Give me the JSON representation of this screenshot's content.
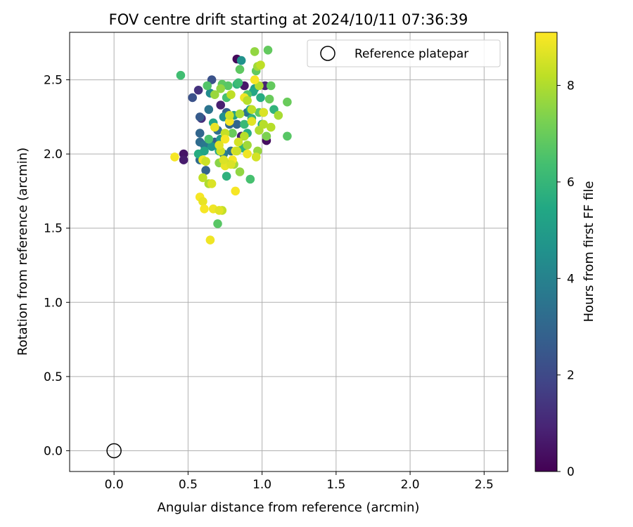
{
  "chart_data": {
    "type": "scatter",
    "title": "FOV centre drift starting at 2024/10/11 07:36:39",
    "xlabel": "Angular distance from reference (arcmin)",
    "ylabel": "Rotation from reference (arcmin)",
    "xlim": [
      -0.3,
      2.66
    ],
    "ylim": [
      -0.14,
      2.82
    ],
    "xticks": [
      0.0,
      0.5,
      1.0,
      1.5,
      2.0,
      2.5
    ],
    "yticks": [
      0.0,
      0.5,
      1.0,
      1.5,
      2.0,
      2.5
    ],
    "xtick_labels": [
      "0.0",
      "0.5",
      "1.0",
      "1.5",
      "2.0",
      "2.5"
    ],
    "ytick_labels": [
      "0.0",
      "0.5",
      "1.0",
      "1.5",
      "2.0",
      "2.5"
    ],
    "grid": true,
    "colorbar": {
      "label": "Hours from first FF file",
      "colormap": "viridis",
      "range": [
        0,
        9.1
      ],
      "ticks": [
        0,
        2,
        4,
        6,
        8
      ],
      "tick_labels": [
        "0",
        "2",
        "4",
        "6",
        "8"
      ]
    },
    "legend": {
      "placement": "top-right",
      "entries": [
        {
          "label": "Reference platepar",
          "marker": "open-circle"
        }
      ]
    },
    "reference_point": {
      "name": "Reference platepar",
      "x": 0.0,
      "y": 0.0
    },
    "series": [
      {
        "points": [
          [
            0.83,
            2.64,
            0.2
          ],
          [
            0.47,
            2.0,
            0.5
          ],
          [
            0.47,
            1.96,
            0.7
          ],
          [
            1.03,
            2.09,
            0.3
          ],
          [
            0.88,
            2.46,
            0.6
          ],
          [
            0.72,
            2.33,
            0.8
          ],
          [
            0.57,
            2.43,
            1.3
          ],
          [
            0.59,
            2.24,
            1.2
          ],
          [
            1.02,
            2.46,
            0.9
          ],
          [
            0.86,
            2.12,
            0.8
          ],
          [
            0.66,
            2.5,
            2.3
          ],
          [
            0.53,
            2.38,
            2.3
          ],
          [
            0.58,
            2.25,
            2.6
          ],
          [
            0.62,
            1.89,
            2.9
          ],
          [
            0.58,
            2.14,
            3.0
          ],
          [
            0.58,
            2.08,
            3.2
          ],
          [
            0.64,
            2.3,
            3.5
          ],
          [
            0.78,
            2.2,
            3.1
          ],
          [
            0.7,
            2.16,
            3.3
          ],
          [
            0.68,
            2.08,
            2.8
          ],
          [
            0.58,
            1.96,
            3.2
          ],
          [
            0.76,
            2.28,
            2.9
          ],
          [
            0.79,
            2.02,
            3.4
          ],
          [
            0.83,
            2.2,
            3.0
          ],
          [
            0.9,
            2.28,
            3.4
          ],
          [
            0.61,
            2.06,
            3.6
          ],
          [
            0.74,
            2.0,
            3.8
          ],
          [
            0.86,
            2.63,
            4.6
          ],
          [
            0.65,
            2.41,
            4.4
          ],
          [
            0.74,
            2.25,
            4.5
          ],
          [
            0.66,
            2.05,
            4.7
          ],
          [
            0.72,
            2.1,
            4.9
          ],
          [
            0.81,
            2.26,
            5.1
          ],
          [
            0.95,
            2.44,
            5.0
          ],
          [
            0.92,
            2.3,
            5.2
          ],
          [
            0.75,
            1.94,
            5.0
          ],
          [
            0.57,
            2.0,
            5.6
          ],
          [
            0.61,
            2.02,
            5.3
          ],
          [
            0.71,
            2.02,
            5.5
          ],
          [
            0.99,
            2.38,
            5.6
          ],
          [
            0.83,
            2.47,
            5.8
          ],
          [
            1.08,
            2.3,
            5.9
          ],
          [
            0.87,
            2.04,
            5.9
          ],
          [
            0.94,
            2.42,
            5.4
          ],
          [
            0.9,
            2.14,
            5.7
          ],
          [
            0.67,
            2.21,
            5.3
          ],
          [
            0.93,
            2.24,
            5.8
          ],
          [
            0.76,
            1.85,
            5.8
          ],
          [
            1.0,
            2.2,
            5.5
          ],
          [
            0.88,
            2.2,
            6.1
          ],
          [
            0.45,
            2.53,
            6.3
          ],
          [
            0.63,
            2.46,
            6.6
          ],
          [
            0.73,
            2.47,
            6.8
          ],
          [
            0.85,
            2.57,
            6.8
          ],
          [
            0.96,
            2.56,
            6.9
          ],
          [
            1.04,
            2.7,
            6.9
          ],
          [
            0.76,
            2.38,
            6.4
          ],
          [
            0.84,
            2.48,
            6.2
          ],
          [
            1.06,
            2.46,
            6.9
          ],
          [
            1.17,
            2.35,
            7.0
          ],
          [
            1.17,
            2.12,
            6.7
          ],
          [
            1.05,
            2.37,
            7.0
          ],
          [
            0.92,
            1.83,
            6.4
          ],
          [
            0.7,
            1.53,
            6.7
          ],
          [
            0.64,
            2.1,
            6.5
          ],
          [
            0.77,
            2.46,
            6.7
          ],
          [
            0.9,
            2.4,
            6.6
          ],
          [
            0.98,
            2.28,
            6.8
          ],
          [
            1.01,
            2.28,
            6.6
          ],
          [
            0.8,
            2.14,
            7.0
          ],
          [
            0.95,
            2.69,
            7.6
          ],
          [
            0.97,
            2.59,
            7.8
          ],
          [
            0.68,
            2.4,
            7.7
          ],
          [
            0.72,
            2.44,
            7.6
          ],
          [
            0.85,
            2.27,
            7.9
          ],
          [
            0.98,
            2.16,
            8.0
          ],
          [
            1.06,
            2.18,
            8.1
          ],
          [
            0.9,
            2.06,
            7.8
          ],
          [
            0.81,
            1.93,
            7.8
          ],
          [
            0.85,
            1.88,
            7.6
          ],
          [
            0.71,
            1.94,
            7.5
          ],
          [
            1.03,
            2.12,
            7.3
          ],
          [
            1.11,
            2.26,
            7.9
          ],
          [
            0.6,
            1.84,
            8.2
          ],
          [
            0.64,
            1.8,
            8.0
          ],
          [
            0.73,
            1.62,
            8.3
          ],
          [
            0.93,
            2.3,
            8.2
          ],
          [
            0.88,
            2.12,
            8.1
          ],
          [
            0.75,
            2.14,
            8.3
          ],
          [
            0.79,
            2.4,
            8.2
          ],
          [
            0.98,
            2.46,
            8.0
          ],
          [
            1.01,
            2.2,
            8.1
          ],
          [
            0.97,
            2.02,
            7.7
          ],
          [
            0.72,
            2.02,
            8.4
          ],
          [
            0.84,
            2.08,
            8.5
          ],
          [
            0.41,
            1.98,
            9.0
          ],
          [
            0.6,
            1.96,
            8.9
          ],
          [
            0.58,
            1.71,
            9.0
          ],
          [
            0.6,
            1.68,
            8.8
          ],
          [
            0.61,
            1.63,
            9.0
          ],
          [
            0.67,
            1.63,
            8.9
          ],
          [
            0.71,
            1.62,
            8.7
          ],
          [
            0.65,
            1.42,
            8.9
          ],
          [
            0.82,
            1.75,
            9.0
          ],
          [
            0.68,
            2.18,
            8.8
          ],
          [
            0.75,
            2.1,
            9.0
          ],
          [
            0.78,
            2.22,
            9.0
          ],
          [
            0.82,
            2.02,
            8.8
          ],
          [
            0.8,
            1.96,
            9.0
          ],
          [
            0.9,
            2.0,
            8.9
          ],
          [
            0.95,
            2.5,
            9.0
          ],
          [
            0.75,
            1.92,
            8.8
          ],
          [
            0.88,
            2.38,
            8.9
          ],
          [
            0.93,
            2.22,
            8.7
          ],
          [
            0.79,
            1.93,
            8.6
          ],
          [
            0.96,
            1.98,
            8.5
          ],
          [
            0.83,
            2.02,
            8.4
          ],
          [
            0.66,
            1.8,
            8.6
          ],
          [
            0.71,
            2.06,
            8.7
          ],
          [
            0.74,
            1.96,
            8.6
          ],
          [
            0.62,
            1.95,
            8.4
          ],
          [
            1.01,
            2.28,
            8.6
          ],
          [
            0.99,
            2.6,
            8.2
          ],
          [
            0.78,
            2.26,
            8.4
          ],
          [
            0.9,
            2.36,
            8.1
          ]
        ],
        "point_format": [
          "x",
          "y",
          "hours"
        ]
      }
    ]
  }
}
